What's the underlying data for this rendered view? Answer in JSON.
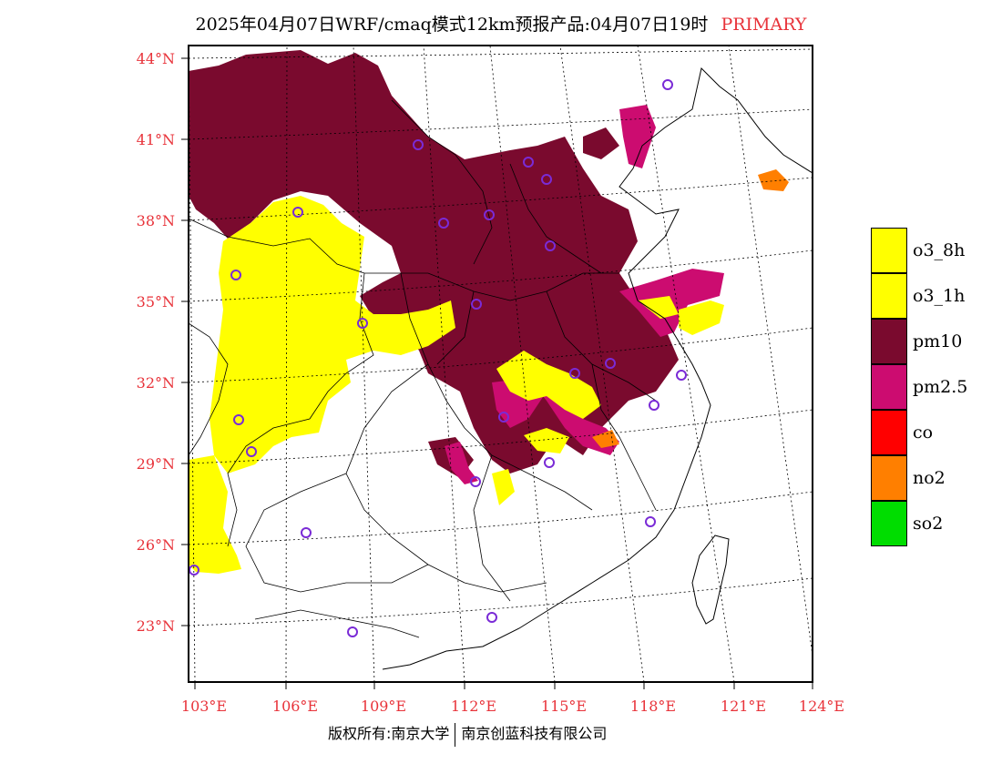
{
  "title": {
    "main": "2025年04月07日WRF/cmaq模式12km预报产品:04月07日19时",
    "tag": "PRIMARY"
  },
  "lat_labels": [
    "44°N",
    "41°N",
    "38°N",
    "35°N",
    "32°N",
    "29°N",
    "26°N",
    "23°N"
  ],
  "lon_labels": [
    "103°E",
    "106°E",
    "109°E",
    "112°E",
    "115°E",
    "118°E",
    "121°E",
    "124°E"
  ],
  "legend": [
    {
      "label": "o3_8h",
      "color": "#ffff00"
    },
    {
      "label": "o3_1h",
      "color": "#ffff00"
    },
    {
      "label": "pm10",
      "color": "#7a0a2e"
    },
    {
      "label": "pm2.5",
      "color": "#cc0c70"
    },
    {
      "label": "co",
      "color": "#ff0000"
    },
    {
      "label": "no2",
      "color": "#ff7f00"
    },
    {
      "label": "so2",
      "color": "#00dd00"
    }
  ],
  "footer": {
    "left": "版权所有:南京大学",
    "right": "南京创蓝科技有限公司"
  }
}
